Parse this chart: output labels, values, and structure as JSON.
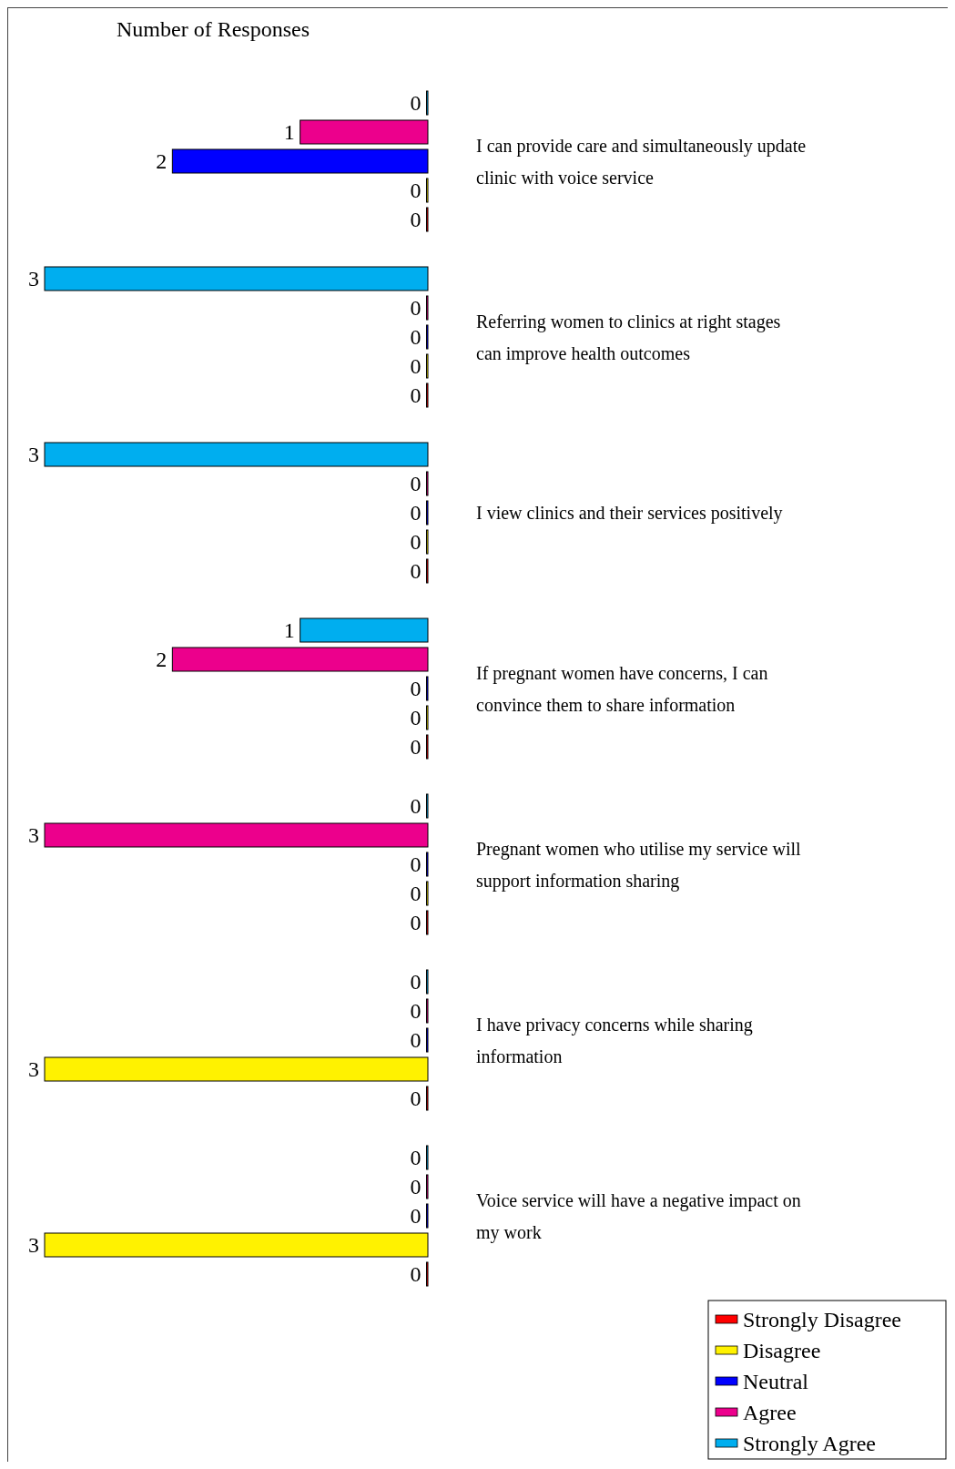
{
  "chart_data": {
    "type": "bar",
    "orientation": "horizontal",
    "xlabel": "Number of Responses",
    "xlim": [
      3,
      0
    ],
    "data_labels": true,
    "legend": "bottom right",
    "categories": [
      "I can provide care and simultaneously update clinic with voice service",
      "Referring women to clinics at right stages can improve health outcomes",
      "I view clinics and their services positively",
      "If pregnant women have concerns, I can convince them to share information",
      "Pregnant women who utilise my service will support information sharing",
      "I have privacy concerns while sharing information",
      "Voice service will have a negative impact on my work"
    ],
    "series": [
      {
        "name": "Strongly Disagree",
        "color": "#ff0000",
        "values": [
          0,
          0,
          0,
          0,
          0,
          0,
          0
        ]
      },
      {
        "name": "Disagree",
        "color": "#fff200",
        "values": [
          0,
          0,
          0,
          0,
          0,
          3,
          3
        ]
      },
      {
        "name": "Neutral",
        "color": "#0000ff",
        "values": [
          2,
          0,
          0,
          0,
          0,
          0,
          0
        ]
      },
      {
        "name": "Agree",
        "color": "#ec008c",
        "values": [
          1,
          0,
          0,
          2,
          3,
          0,
          0
        ]
      },
      {
        "name": "Strongly Agree",
        "color": "#00aeef",
        "values": [
          0,
          3,
          3,
          1,
          0,
          0,
          0
        ]
      }
    ]
  }
}
